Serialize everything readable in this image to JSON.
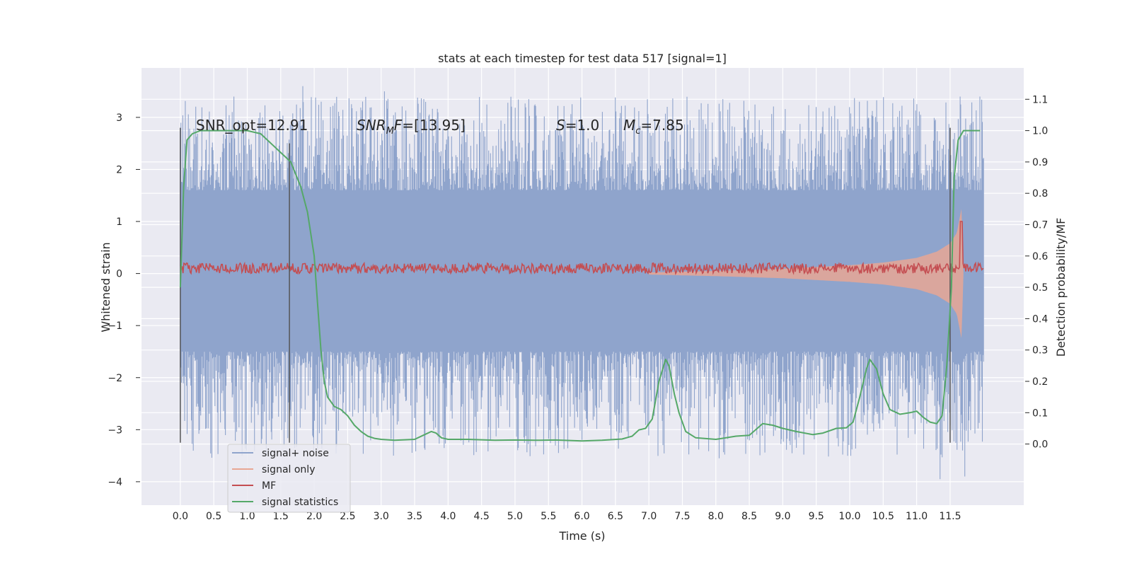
{
  "chart_data": {
    "type": "line",
    "title": "stats at each timestep for test data 517 [signal=1]",
    "xlabel": "Time (s)",
    "ylabel": "Whitened strain",
    "y2label": "Detection probability/MF",
    "xlim": [
      -0.58,
      12.6
    ],
    "ylim": [
      -4.45,
      3.95
    ],
    "y2lim": [
      -0.195,
      1.2
    ],
    "xticks": [
      0.0,
      0.5,
      1.0,
      1.5,
      2.0,
      2.5,
      3.0,
      3.5,
      4.0,
      4.5,
      5.0,
      5.5,
      6.0,
      6.5,
      7.0,
      7.5,
      8.0,
      8.5,
      9.0,
      9.5,
      10.0,
      10.5,
      11.0,
      11.5
    ],
    "xtick_labels": [
      "0.0",
      "0.5",
      "1.0",
      "1.5",
      "2.0",
      "2.5",
      "3.0",
      "3.5",
      "4.0",
      "4.5",
      "5.0",
      "5.5",
      "6.0",
      "6.5",
      "7.0",
      "7.5",
      "8.0",
      "8.5",
      "9.0",
      "9.5",
      "10.0",
      "10.5",
      "11.0",
      "11.5"
    ],
    "yticks": [
      -4,
      -3,
      -2,
      -1,
      0,
      1,
      2,
      3
    ],
    "ytick_labels": [
      "−4",
      "−3",
      "−2",
      "−1",
      "0",
      "1",
      "2",
      "3"
    ],
    "y2ticks": [
      0.0,
      0.1,
      0.2,
      0.3,
      0.4,
      0.5,
      0.6,
      0.7,
      0.8,
      0.9,
      1.0,
      1.1
    ],
    "y2tick_labels": [
      "0.0",
      "0.1",
      "0.2",
      "0.3",
      "0.4",
      "0.5",
      "0.6",
      "0.7",
      "0.8",
      "0.9",
      "1.0",
      "1.1"
    ],
    "grid": true,
    "legend_position": "lower-left",
    "annotations": {
      "snr_opt": "SNR_opt=12.91",
      "snr_mf_sym": "SNR",
      "snr_mf_sub": "M",
      "snr_mf_f": "F",
      "snr_mf_val": "=[13.95]",
      "s_sym": "S",
      "s_val": "=1.0",
      "mc_sym": "M",
      "mc_sub": "c",
      "mc_val": "=7.85"
    },
    "vertical_markers": [
      {
        "x": 0.0,
        "y": [
          -3.25,
          2.8
        ]
      },
      {
        "x": 1.63,
        "y": [
          -3.25,
          2.5
        ]
      },
      {
        "x": 11.5,
        "y": [
          -3.25,
          2.8
        ]
      }
    ],
    "noise_envelope": {
      "x_start": 0.0,
      "x_end": 12.0,
      "dense_high": 1.6,
      "dense_low": -1.5,
      "max_high": 3.6,
      "min_low": -3.9
    },
    "series": [
      {
        "name": "signal+ noise",
        "color": "#8fa4cc",
        "axis": "left",
        "notable_peaks": [
          {
            "x": 0.8,
            "y": 3.4
          },
          {
            "x": 1.83,
            "y": 3.6
          },
          {
            "x": 3.05,
            "y": 3.5
          },
          {
            "x": 7.75,
            "y": 3.15
          },
          {
            "x": 11.65,
            "y": 3.4
          },
          {
            "x": 1.55,
            "y": -3.3
          },
          {
            "x": 8.05,
            "y": -3.55
          },
          {
            "x": 11.35,
            "y": -3.95
          },
          {
            "x": 11.72,
            "y": -3.9
          }
        ]
      },
      {
        "name": "signal only",
        "color": "#e8a794",
        "axis": "left",
        "amplitude": [
          {
            "x": 7.0,
            "y": 0.02
          },
          {
            "x": 8.0,
            "y": 0.05
          },
          {
            "x": 9.0,
            "y": 0.09
          },
          {
            "x": 10.0,
            "y": 0.16
          },
          {
            "x": 10.5,
            "y": 0.21
          },
          {
            "x": 11.0,
            "y": 0.3
          },
          {
            "x": 11.3,
            "y": 0.42
          },
          {
            "x": 11.5,
            "y": 0.58
          },
          {
            "x": 11.6,
            "y": 0.78
          },
          {
            "x": 11.67,
            "y": 1.25
          },
          {
            "x": 11.7,
            "y": 0.0
          }
        ]
      },
      {
        "name": "MF",
        "color": "#c44e52",
        "axis": "left",
        "baseline": 0.1,
        "amplitude": 0.1,
        "peak": {
          "x": 11.67,
          "y": 1.0
        }
      },
      {
        "name": "signal statistics",
        "color": "#55a868",
        "axis": "right",
        "x": [
          0.0,
          0.05,
          0.1,
          0.18,
          0.3,
          0.5,
          0.8,
          1.0,
          1.2,
          1.35,
          1.5,
          1.65,
          1.8,
          1.9,
          2.0,
          2.05,
          2.1,
          2.15,
          2.2,
          2.3,
          2.4,
          2.5,
          2.6,
          2.7,
          2.8,
          2.9,
          3.0,
          3.2,
          3.5,
          3.65,
          3.75,
          3.82,
          3.9,
          4.0,
          4.3,
          4.7,
          5.0,
          5.3,
          5.6,
          6.0,
          6.3,
          6.6,
          6.75,
          6.85,
          6.95,
          7.05,
          7.15,
          7.25,
          7.3,
          7.38,
          7.45,
          7.55,
          7.7,
          8.0,
          8.3,
          8.5,
          8.7,
          8.85,
          9.0,
          9.2,
          9.45,
          9.6,
          9.8,
          9.95,
          10.05,
          10.15,
          10.25,
          10.3,
          10.4,
          10.5,
          10.6,
          10.75,
          10.9,
          11.0,
          11.1,
          11.2,
          11.3,
          11.38,
          11.45,
          11.52,
          11.56,
          11.62,
          11.7,
          11.8,
          11.95
        ],
        "values": [
          0.5,
          0.82,
          0.97,
          0.99,
          1.0,
          1.0,
          1.0,
          1.0,
          0.99,
          0.96,
          0.93,
          0.9,
          0.82,
          0.74,
          0.6,
          0.45,
          0.3,
          0.2,
          0.15,
          0.12,
          0.11,
          0.09,
          0.06,
          0.04,
          0.025,
          0.018,
          0.015,
          0.012,
          0.015,
          0.03,
          0.04,
          0.035,
          0.02,
          0.015,
          0.015,
          0.012,
          0.013,
          0.012,
          0.013,
          0.01,
          0.012,
          0.016,
          0.025,
          0.045,
          0.05,
          0.08,
          0.2,
          0.27,
          0.25,
          0.16,
          0.1,
          0.04,
          0.02,
          0.015,
          0.025,
          0.028,
          0.065,
          0.06,
          0.05,
          0.04,
          0.03,
          0.035,
          0.05,
          0.052,
          0.07,
          0.15,
          0.24,
          0.27,
          0.24,
          0.16,
          0.11,
          0.095,
          0.1,
          0.105,
          0.085,
          0.07,
          0.065,
          0.09,
          0.25,
          0.5,
          0.85,
          0.97,
          1.0,
          1.0,
          1.0
        ]
      }
    ]
  }
}
